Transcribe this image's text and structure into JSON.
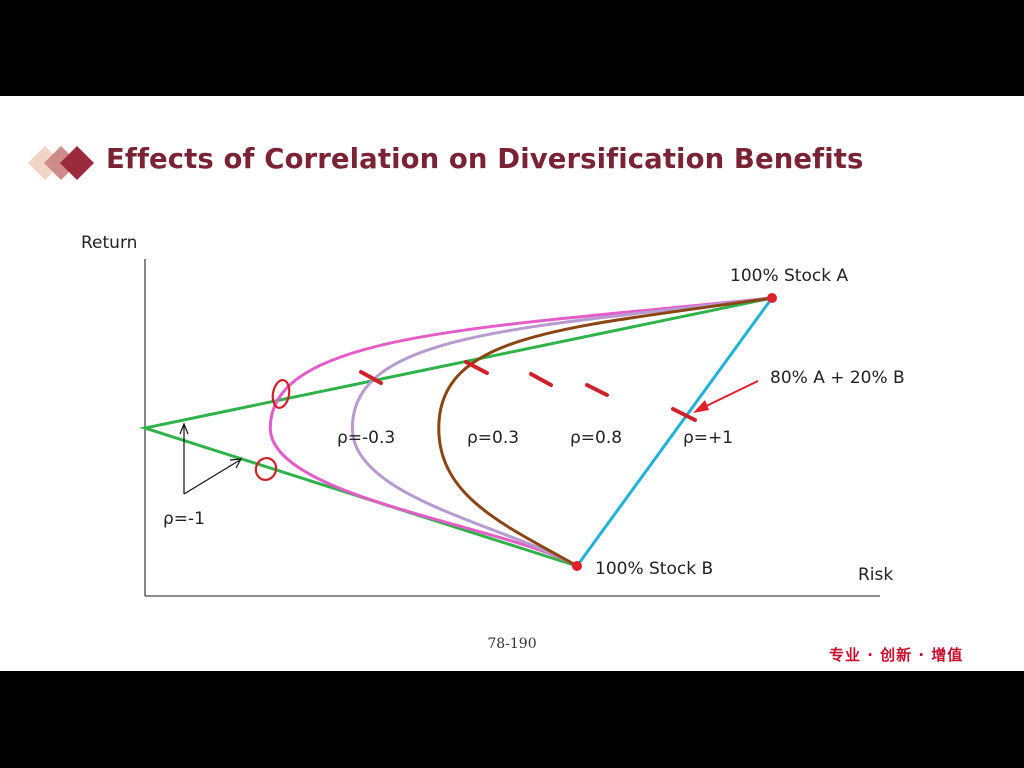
{
  "slide": {
    "title": "Effects of Correlation on Diversification Benefits",
    "page_number": "78-190",
    "footer_tagline": "专业 · 创新 · 增值"
  },
  "chart_data": {
    "type": "line",
    "title": "Effects of Correlation on Diversification Benefits",
    "xlabel": "Risk",
    "ylabel": "Return",
    "grid": false,
    "axis_ticks": false,
    "points": [
      {
        "name": "stock-a",
        "label": "100% Stock A"
      },
      {
        "name": "stock-b",
        "label": "100% Stock B"
      }
    ],
    "series": [
      {
        "name": "ρ=-1",
        "label": "ρ=-1",
        "color": "#2eb24a",
        "min_risk_fraction": 0.0
      },
      {
        "name": "ρ=-0.3",
        "label": "ρ=-0.3",
        "color": "#e55cc8",
        "min_risk_fraction": 0.29
      },
      {
        "name": "ρ=0.3",
        "label": "ρ=0.3",
        "color": "#b79ad0",
        "min_risk_fraction": 0.48
      },
      {
        "name": "ρ=0.8",
        "label": "ρ=0.8",
        "color": "#8b4513",
        "min_risk_fraction": 0.68
      },
      {
        "name": "ρ=+1",
        "label": "ρ=+1",
        "color": "#20b2d8",
        "min_risk_fraction": null
      }
    ],
    "annotations": [
      {
        "name": "mix-80a-20b",
        "label": "80% A + 20% B",
        "color": "#e0202c"
      }
    ],
    "handwritten_marks_color": "#d0202a"
  }
}
